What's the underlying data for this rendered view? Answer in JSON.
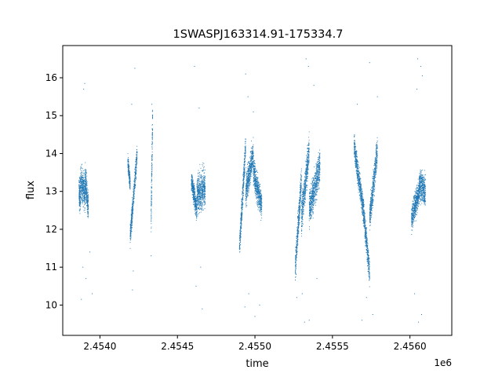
{
  "chart_data": {
    "type": "scatter",
    "title": "1SWASPJ163314.91-175334.7",
    "xlabel": "time",
    "ylabel": "flux",
    "x_offset_label": "1e6",
    "xlim": [
      2453760,
      2456270
    ],
    "ylim": [
      9.2,
      16.85
    ],
    "x_ticks": [
      2.454,
      2.4545,
      2.455,
      2.4555,
      2.456
    ],
    "x_tick_labels": [
      "2.4540",
      "2.4545",
      "2.4550",
      "2.4555",
      "2.4560"
    ],
    "y_ticks": [
      10,
      11,
      12,
      13,
      14,
      15,
      16
    ],
    "y_tick_labels": [
      "10",
      "11",
      "12",
      "13",
      "14",
      "15",
      "16"
    ],
    "grid": false,
    "marker_color": "#1f77b4",
    "segments": [
      {
        "x": [
          2453865,
          2453873
        ],
        "y": [
          13.0,
          12.8
        ],
        "spread": 0.7
      },
      {
        "x": [
          2453873,
          2453905
        ],
        "y": [
          13.2,
          13.0
        ],
        "spread": 0.8
      },
      {
        "x": [
          2453905,
          2453925
        ],
        "y": [
          13.3,
          12.6
        ],
        "spread": 0.7
      },
      {
        "x": [
          2454180,
          2454195
        ],
        "y": [
          13.8,
          13.2
        ],
        "spread": 0.4
      },
      {
        "x": [
          2454195,
          2454240
        ],
        "y": [
          11.8,
          14.0
        ],
        "spread": 0.5
      },
      {
        "x": [
          2454330,
          2454340
        ],
        "y": [
          12.2,
          14.9
        ],
        "spread": 0.9
      },
      {
        "x": [
          2454590,
          2454625
        ],
        "y": [
          13.3,
          12.5
        ],
        "spread": 0.5
      },
      {
        "x": [
          2454625,
          2454680
        ],
        "y": [
          12.9,
          13.1
        ],
        "spread": 0.9
      },
      {
        "x": [
          2454900,
          2454940
        ],
        "y": [
          11.5,
          14.2
        ],
        "spread": 0.6
      },
      {
        "x": [
          2454940,
          2454990
        ],
        "y": [
          13.0,
          14.0
        ],
        "spread": 0.7
      },
      {
        "x": [
          2454990,
          2455045
        ],
        "y": [
          13.5,
          12.6
        ],
        "spread": 0.7
      },
      {
        "x": [
          2455260,
          2455300
        ],
        "y": [
          11.0,
          13.3
        ],
        "spread": 0.7
      },
      {
        "x": [
          2455300,
          2455350
        ],
        "y": [
          12.3,
          14.1
        ],
        "spread": 0.8
      },
      {
        "x": [
          2455350,
          2455420
        ],
        "y": [
          12.5,
          13.7
        ],
        "spread": 0.8
      },
      {
        "x": [
          2455640,
          2455700
        ],
        "y": [
          14.2,
          12.5
        ],
        "spread": 0.6
      },
      {
        "x": [
          2455700,
          2455740
        ],
        "y": [
          12.5,
          10.8
        ],
        "spread": 0.6
      },
      {
        "x": [
          2455740,
          2455790
        ],
        "y": [
          12.3,
          14.1
        ],
        "spread": 0.7
      },
      {
        "x": [
          2456010,
          2456060
        ],
        "y": [
          12.3,
          13.0
        ],
        "spread": 0.6
      },
      {
        "x": [
          2456060,
          2456100
        ],
        "y": [
          13.2,
          13.0
        ],
        "spread": 0.7
      }
    ],
    "outliers": [
      [
        2453880,
        10.15
      ],
      [
        2453895,
        15.7
      ],
      [
        2453902,
        15.85
      ],
      [
        2453890,
        11.0
      ],
      [
        2453910,
        10.7
      ],
      [
        2453950,
        10.3
      ],
      [
        2453935,
        11.4
      ],
      [
        2454205,
        15.3
      ],
      [
        2454225,
        16.25
      ],
      [
        2454210,
        10.4
      ],
      [
        2454215,
        10.9
      ],
      [
        2454335,
        15.3
      ],
      [
        2454330,
        11.3
      ],
      [
        2454610,
        16.3
      ],
      [
        2454620,
        10.5
      ],
      [
        2454640,
        15.2
      ],
      [
        2454660,
        9.9
      ],
      [
        2454650,
        11.0
      ],
      [
        2454940,
        16.1
      ],
      [
        2454935,
        9.95
      ],
      [
        2454960,
        10.3
      ],
      [
        2454990,
        15.1
      ],
      [
        2455000,
        9.7
      ],
      [
        2455030,
        10.0
      ],
      [
        2454955,
        15.5
      ],
      [
        2455330,
        16.5
      ],
      [
        2455345,
        16.3
      ],
      [
        2455305,
        10.3
      ],
      [
        2455320,
        9.55
      ],
      [
        2455350,
        9.6
      ],
      [
        2455380,
        15.8
      ],
      [
        2455400,
        10.7
      ],
      [
        2455270,
        10.2
      ],
      [
        2455690,
        9.6
      ],
      [
        2455740,
        16.4
      ],
      [
        2455760,
        9.75
      ],
      [
        2455660,
        15.3
      ],
      [
        2455720,
        10.2
      ],
      [
        2455790,
        15.5
      ],
      [
        2456050,
        16.5
      ],
      [
        2456070,
        16.3
      ],
      [
        2456080,
        16.05
      ],
      [
        2456055,
        9.55
      ],
      [
        2456075,
        9.75
      ],
      [
        2456030,
        10.3
      ],
      [
        2456045,
        15.7
      ]
    ]
  }
}
